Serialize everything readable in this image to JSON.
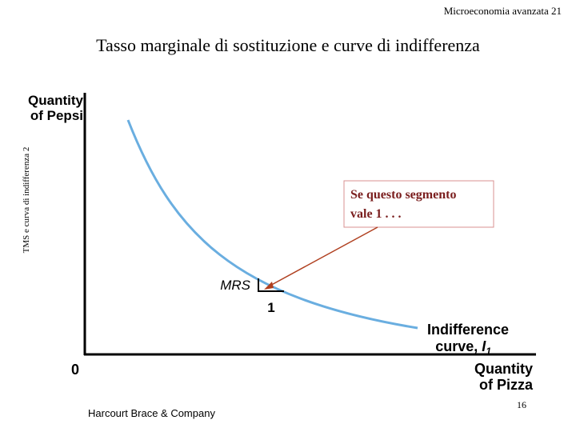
{
  "header": {
    "running_head": "Microeconomia avanzata 21",
    "title": "Tasso marginale di sostituzione e curve di indifferenza"
  },
  "side_note": "TMS e curva di indifferenza 2",
  "diagram": {
    "y_axis_label": [
      "Quantity",
      "of Pepsi"
    ],
    "origin": "0",
    "mrs_label": "MRS",
    "segment_label": "1",
    "curve_label": [
      "Indifference",
      "curve,"
    ],
    "curve_name": "I",
    "curve_subscript": "1",
    "x_axis_label": [
      "Quantity",
      "of Pizza"
    ],
    "callout": [
      "Se questo segmento",
      "vale 1 . . ."
    ]
  },
  "footer": {
    "publisher": "Harcourt Brace & Company",
    "page_number": "16"
  }
}
